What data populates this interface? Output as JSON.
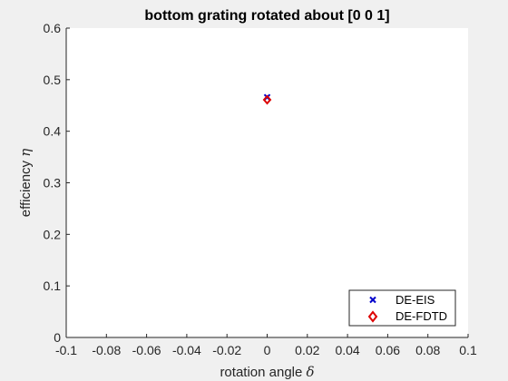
{
  "chart_data": {
    "type": "scatter",
    "title": "bottom grating rotated about [0 0 1]",
    "xlabel": "rotation angle",
    "xlabel_symbol": "δ",
    "ylabel": "efficiency",
    "ylabel_symbol": "η",
    "xlim": [
      -0.1,
      0.1
    ],
    "ylim": [
      0,
      0.6
    ],
    "xticks": [
      -0.1,
      -0.08,
      -0.06,
      -0.04,
      -0.02,
      0,
      0.02,
      0.04,
      0.06,
      0.08,
      0.1
    ],
    "xtick_labels": [
      "-0.1",
      "-0.08",
      "-0.06",
      "-0.04",
      "-0.02",
      "0",
      "0.02",
      "0.04",
      "0.06",
      "0.08",
      "0.1"
    ],
    "yticks": [
      0,
      0.1,
      0.2,
      0.3,
      0.4,
      0.5,
      0.6
    ],
    "ytick_labels": [
      "0",
      "0.1",
      "0.2",
      "0.3",
      "0.4",
      "0.5",
      "0.6"
    ],
    "grid": false,
    "legend_position": "bottom-right",
    "series": [
      {
        "name": "DE-EIS",
        "marker": "x",
        "color": "#0000cc",
        "x": [
          0
        ],
        "y": [
          0.466
        ]
      },
      {
        "name": "DE-FDTD",
        "marker": "diamond",
        "color": "#dd0000",
        "x": [
          0
        ],
        "y": [
          0.461
        ]
      }
    ]
  }
}
